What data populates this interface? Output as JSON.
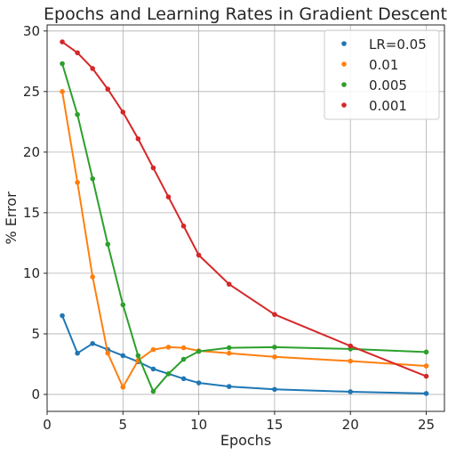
{
  "chart_data": {
    "type": "line",
    "title": "Epochs and Learning Rates in Gradient Descent",
    "xlabel": "Epochs",
    "ylabel": "% Error",
    "xlim": [
      0,
      26.2
    ],
    "ylim": [
      -1.4,
      30.5
    ],
    "xticks": [
      0,
      5,
      10,
      15,
      20,
      25
    ],
    "yticks": [
      0,
      5,
      10,
      15,
      20,
      25,
      30
    ],
    "grid": true,
    "legend_position": "top-right",
    "x": [
      1,
      2,
      3,
      4,
      5,
      6,
      7,
      8,
      9,
      10,
      12,
      15,
      20,
      25
    ],
    "series": [
      {
        "name": "LR=0.05",
        "color": "#1f77b4",
        "values": [
          6.5,
          3.4,
          4.2,
          3.7,
          3.2,
          2.7,
          2.1,
          1.7,
          1.3,
          0.95,
          0.65,
          0.42,
          0.22,
          0.08
        ]
      },
      {
        "name": "0.01",
        "color": "#ff7f0e",
        "values": [
          25.0,
          17.5,
          9.7,
          3.4,
          0.6,
          2.8,
          3.7,
          3.9,
          3.85,
          3.6,
          3.4,
          3.1,
          2.75,
          2.35
        ]
      },
      {
        "name": "0.005",
        "color": "#2ca02c",
        "values": [
          27.3,
          23.1,
          17.8,
          12.4,
          7.4,
          3.2,
          0.25,
          1.7,
          2.9,
          3.55,
          3.85,
          3.9,
          3.75,
          3.5
        ]
      },
      {
        "name": "0.001",
        "color": "#d62728",
        "values": [
          29.1,
          28.2,
          26.9,
          25.2,
          23.3,
          21.1,
          18.7,
          16.3,
          13.9,
          11.5,
          9.1,
          6.6,
          4.0,
          1.5
        ]
      }
    ]
  }
}
